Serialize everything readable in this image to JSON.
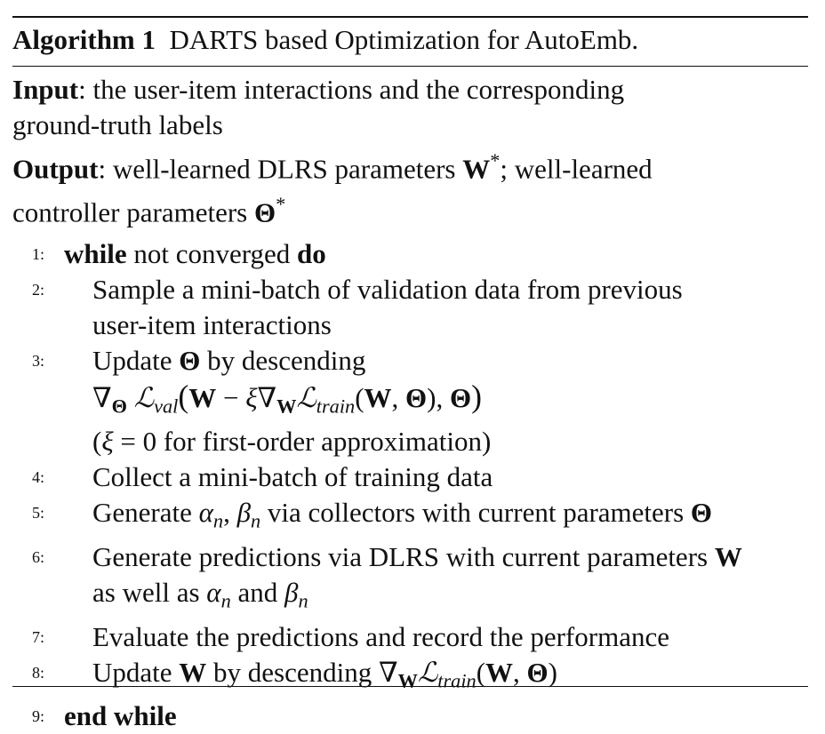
{
  "algorithm": {
    "label": "Algorithm 1",
    "title": "DARTS based Optimization for AutoEmb."
  },
  "io": {
    "input_label": "Input",
    "input_text_1": ": the user-item interactions and the corresponding",
    "input_text_2": "ground-truth labels",
    "output_label": "Output",
    "output_text_1a": ": well-learned DLRS parameters ",
    "output_text_1b": "; well-learned",
    "output_text_2": "controller parameters ",
    "W": "W",
    "Theta": "Θ",
    "star": "*"
  },
  "steps": [
    {
      "num": "1:",
      "kw_while": "while",
      "text": " not converged ",
      "kw_do": "do"
    },
    {
      "num": "2:",
      "line1": "Sample a mini-batch of validation data from previous",
      "line2": "user-item interactions"
    },
    {
      "num": "3:",
      "line1a": "Update ",
      "line1b": " by descending",
      "line3": " = 0 for first-order approximation)"
    },
    {
      "num": "4:",
      "text": "Collect a mini-batch of training data"
    },
    {
      "num": "5:",
      "text_a": "Generate ",
      "text_b": " via collectors with current parameters "
    },
    {
      "num": "6:",
      "line1": "Generate predictions via DLRS with current parameters ",
      "line2a": "as well as ",
      "line2b": " and "
    },
    {
      "num": "7:",
      "text": "Evaluate the predictions and record the performance"
    },
    {
      "num": "8:",
      "text_a": "Update ",
      "text_b": " by descending "
    },
    {
      "num": "9:",
      "kw_end": "end while"
    }
  ]
}
